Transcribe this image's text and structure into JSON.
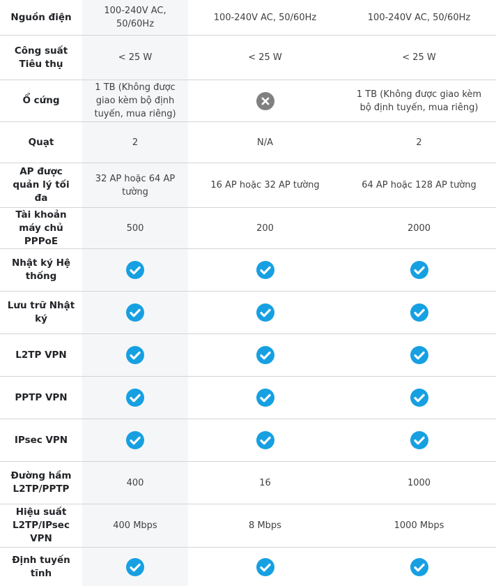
{
  "table": {
    "highlight_color": "#f5f6f8",
    "border_color": "#d4d4d4",
    "check_color": "#16a0e2",
    "cross_color": "#808080",
    "label_color": "#222428",
    "value_color": "#404040",
    "icons": {
      "check": "check-icon",
      "cross": "cross-icon"
    },
    "rows": [
      {
        "label": "Nguồn điện",
        "cells": [
          {
            "type": "text",
            "value": "100-240V AC, 50/60Hz"
          },
          {
            "type": "text",
            "value": "100-240V AC, 50/60Hz"
          },
          {
            "type": "text",
            "value": "100-240V AC, 50/60Hz"
          }
        ]
      },
      {
        "label": "Công suất Tiêu thụ",
        "cells": [
          {
            "type": "text",
            "value": "< 25 W"
          },
          {
            "type": "text",
            "value": "< 25 W"
          },
          {
            "type": "text",
            "value": "< 25 W"
          }
        ]
      },
      {
        "label": "Ổ cứng",
        "cells": [
          {
            "type": "text",
            "value": "1 TB (Không được giao kèm bộ định tuyến, mua riêng)"
          },
          {
            "type": "cross"
          },
          {
            "type": "text",
            "value": "1 TB (Không được giao kèm bộ định tuyến, mua riêng)"
          }
        ]
      },
      {
        "label": "Quạt",
        "cells": [
          {
            "type": "text",
            "value": "2"
          },
          {
            "type": "text",
            "value": "N/A"
          },
          {
            "type": "text",
            "value": "2"
          }
        ]
      },
      {
        "label": "AP được quản lý tối đa",
        "cells": [
          {
            "type": "text",
            "value": "32 AP hoặc 64 AP tường"
          },
          {
            "type": "text",
            "value": "16 AP hoặc 32 AP tường"
          },
          {
            "type": "text",
            "value": "64 AP hoặc 128 AP tường"
          }
        ]
      },
      {
        "label": "Tài khoản máy chủ PPPoE",
        "cells": [
          {
            "type": "text",
            "value": "500"
          },
          {
            "type": "text",
            "value": "200"
          },
          {
            "type": "text",
            "value": "2000"
          }
        ]
      },
      {
        "label": "Nhật ký Hệ thống",
        "cells": [
          {
            "type": "check"
          },
          {
            "type": "check"
          },
          {
            "type": "check"
          }
        ]
      },
      {
        "label": "Lưu trữ Nhật ký",
        "cells": [
          {
            "type": "check"
          },
          {
            "type": "check"
          },
          {
            "type": "check"
          }
        ]
      },
      {
        "label": "L2TP VPN",
        "cells": [
          {
            "type": "check"
          },
          {
            "type": "check"
          },
          {
            "type": "check"
          }
        ]
      },
      {
        "label": "PPTP VPN",
        "cells": [
          {
            "type": "check"
          },
          {
            "type": "check"
          },
          {
            "type": "check"
          }
        ]
      },
      {
        "label": "IPsec VPN",
        "cells": [
          {
            "type": "check"
          },
          {
            "type": "check"
          },
          {
            "type": "check"
          }
        ]
      },
      {
        "label": "Đường hầm L2TP/PPTP",
        "cells": [
          {
            "type": "text",
            "value": "400"
          },
          {
            "type": "text",
            "value": "16"
          },
          {
            "type": "text",
            "value": "1000"
          }
        ]
      },
      {
        "label": "Hiệu suất L2TP/IPsec VPN",
        "cells": [
          {
            "type": "text",
            "value": "400 Mbps"
          },
          {
            "type": "text",
            "value": "8 Mbps"
          },
          {
            "type": "text",
            "value": "1000 Mbps"
          }
        ]
      },
      {
        "label": "Định tuyến tĩnh",
        "cells": [
          {
            "type": "check"
          },
          {
            "type": "check"
          },
          {
            "type": "check"
          }
        ]
      }
    ]
  }
}
